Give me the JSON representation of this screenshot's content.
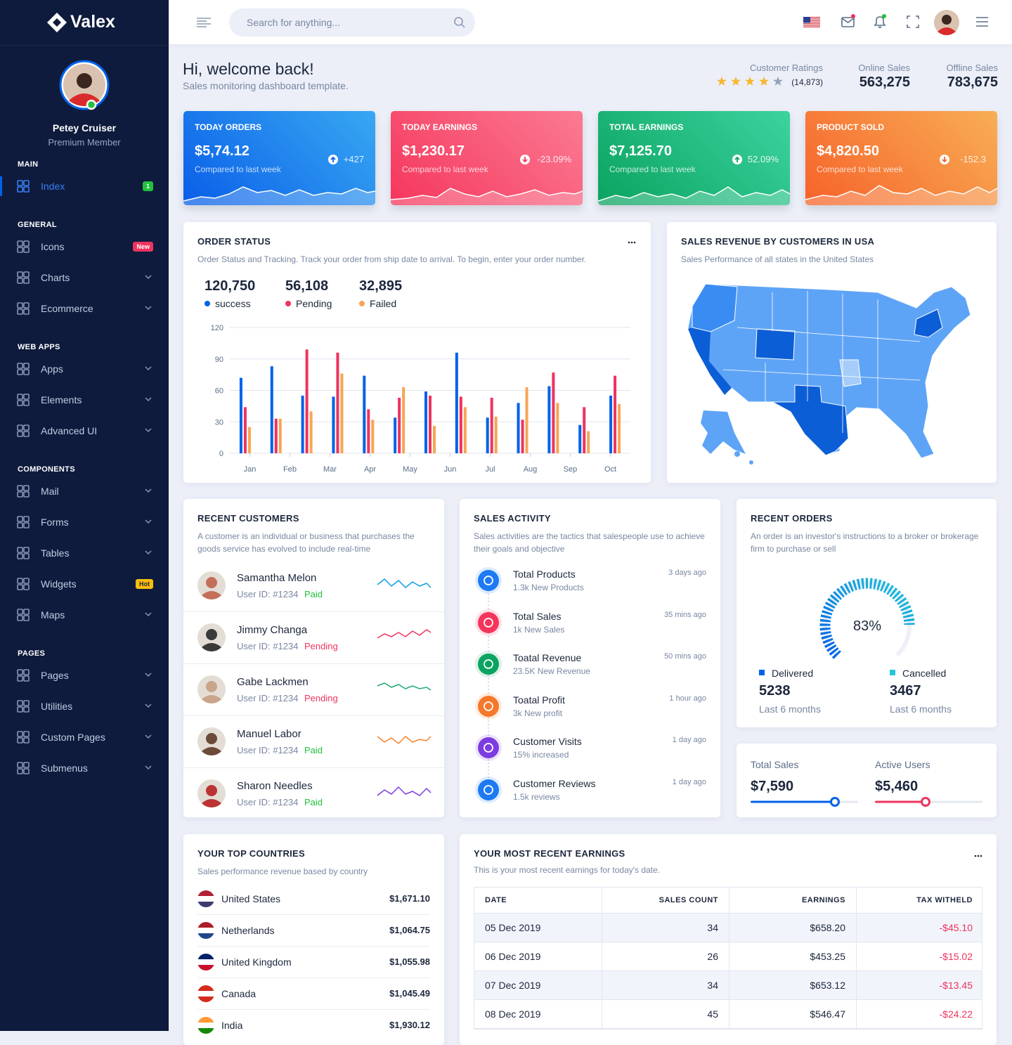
{
  "sidebar": {
    "brand": "Valex",
    "user": {
      "name": "Petey Cruiser",
      "role": "Premium Member"
    },
    "sections": [
      {
        "title": "MAIN",
        "items": [
          {
            "label": "Index",
            "badge": "1"
          }
        ]
      },
      {
        "title": "GENERAL",
        "items": [
          {
            "label": "Icons",
            "badge": "New"
          },
          {
            "label": "Charts"
          },
          {
            "label": "Ecommerce"
          }
        ]
      },
      {
        "title": "WEB APPS",
        "items": [
          {
            "label": "Apps"
          },
          {
            "label": "Elements"
          },
          {
            "label": "Advanced UI"
          }
        ]
      },
      {
        "title": "COMPONENTS",
        "items": [
          {
            "label": "Mail"
          },
          {
            "label": "Forms"
          },
          {
            "label": "Tables"
          },
          {
            "label": "Widgets",
            "badge": "Hot"
          },
          {
            "label": "Maps"
          }
        ]
      },
      {
        "title": "PAGES",
        "items": [
          {
            "label": "Pages"
          },
          {
            "label": "Utilities"
          },
          {
            "label": "Custom Pages"
          },
          {
            "label": "Submenus"
          }
        ]
      }
    ]
  },
  "header": {
    "search_placeholder": "Search for anything..."
  },
  "welcome": {
    "title": "Hi, welcome back!",
    "subtitle": "Sales monitoring dashboard template.",
    "ratings": {
      "label": "Customer Ratings",
      "stars": 4,
      "count": "(14,873)"
    },
    "online": {
      "label": "Online Sales",
      "value": "563,275"
    },
    "offline": {
      "label": "Offline Sales",
      "value": "783,675"
    }
  },
  "stat_cards": [
    {
      "title": "TODAY ORDERS",
      "value": "$5,74.12",
      "note": "Compared to last week",
      "change": "+427"
    },
    {
      "title": "TODAY EARNINGS",
      "value": "$1,230.17",
      "note": "Compared to last week",
      "change": "-23.09%"
    },
    {
      "title": "TOTAL EARNINGS",
      "value": "$7,125.70",
      "note": "Compared to last week",
      "change": "52.09%"
    },
    {
      "title": "PRODUCT SOLD",
      "value": "$4,820.50",
      "note": "Compared to last week",
      "change": "-152.3"
    }
  ],
  "order_status": {
    "title": "ORDER STATUS",
    "subtitle": "Order Status and Tracking. Track your order from ship date to arrival. To begin, enter your order number."
  },
  "chart_data": {
    "type": "bar",
    "categories": [
      null,
      null,
      null,
      null,
      null,
      null,
      null,
      null,
      null,
      null,
      null,
      null,
      null
    ],
    "x_labels": [
      "Jan",
      "Feb",
      "Mar",
      "Apr",
      "May",
      "Jun",
      "Jul",
      "Aug",
      "Sep",
      "Oct"
    ],
    "series": [
      {
        "name": "success",
        "total": "120,750",
        "color": "#0162e8",
        "values": [
          72,
          83,
          55,
          54,
          74,
          34,
          59,
          96,
          34,
          48,
          64,
          27,
          55
        ]
      },
      {
        "name": "Pending",
        "total": "56,108",
        "color": "#ee335e",
        "values": [
          44,
          33,
          99,
          96,
          42,
          53,
          55,
          54,
          53,
          32,
          77,
          44,
          74
        ]
      },
      {
        "name": "Failed",
        "total": "32,895",
        "color": "#f7a556",
        "values": [
          25,
          33,
          40,
          76,
          32,
          63,
          26,
          44,
          35,
          63,
          48,
          21,
          47
        ]
      }
    ],
    "ylim": [
      0,
      120
    ],
    "yticks": [
      0,
      30,
      60,
      90,
      120
    ],
    "grid": true
  },
  "map": {
    "title": "SALES REVENUE BY CUSTOMERS IN USA",
    "subtitle": "Sales Performance of all states in the United States"
  },
  "recent_customers": {
    "title": "RECENT CUSTOMERS",
    "subtitle": "A customer is an individual or business that purchases the goods service has evolved to include real-time",
    "rows": [
      {
        "name": "Samantha Melon",
        "user_id": "User ID: #1234",
        "status": "Paid"
      },
      {
        "name": "Jimmy Changa",
        "user_id": "User ID: #1234",
        "status": "Pending"
      },
      {
        "name": "Gabe Lackmen",
        "user_id": "User ID: #1234",
        "status": "Pending"
      },
      {
        "name": "Manuel Labor",
        "user_id": "User ID: #1234",
        "status": "Paid"
      },
      {
        "name": "Sharon Needles",
        "user_id": "User ID: #1234",
        "status": "Paid"
      }
    ]
  },
  "sales_activity": {
    "title": "SALES ACTIVITY",
    "subtitle": "Sales activities are the tactics that salespeople use to achieve their goals and objective",
    "items": [
      {
        "title": "Total Products",
        "sub": "1.3k New Products",
        "time": "3 days ago"
      },
      {
        "title": "Total Sales",
        "sub": "1k New Sales",
        "time": "35 mins ago"
      },
      {
        "title": "Toatal Revenue",
        "sub": "23.5K New Revenue",
        "time": "50 mins ago"
      },
      {
        "title": "Toatal Profit",
        "sub": "3k New profit",
        "time": "1 hour ago"
      },
      {
        "title": "Customer Visits",
        "sub": "15% increased",
        "time": "1 day ago"
      },
      {
        "title": "Customer Reviews",
        "sub": "1.5k reviews",
        "time": "1 day ago"
      }
    ]
  },
  "recent_orders": {
    "title": "RECENT ORDERS",
    "subtitle": "An order is an investor's instructions to a broker or brokerage firm to purchase or sell",
    "percent": 83,
    "percent_label": "83%",
    "legend": [
      {
        "label": "Delivered",
        "value": "5238",
        "period": "Last 6 months"
      },
      {
        "label": "Cancelled",
        "value": "3467",
        "period": "Last 6 months"
      }
    ]
  },
  "totals": [
    {
      "label": "Total Sales",
      "value": "$7,590"
    },
    {
      "label": "Active Users",
      "value": "$5,460"
    }
  ],
  "top_countries": {
    "title": "YOUR TOP COUNTRIES",
    "subtitle": "Sales performance revenue based by country",
    "rows": [
      {
        "name": "United States",
        "amount": "$1,671.10"
      },
      {
        "name": "Netherlands",
        "amount": "$1,064.75"
      },
      {
        "name": "United Kingdom",
        "amount": "$1,055.98"
      },
      {
        "name": "Canada",
        "amount": "$1,045.49"
      },
      {
        "name": "India",
        "amount": "$1,930.12"
      }
    ]
  },
  "earnings": {
    "title": "YOUR MOST RECENT EARNINGS",
    "subtitle": "This is your most recent earnings for today's date.",
    "table": {
      "headers": [
        "DATE",
        "SALES COUNT",
        "EARNINGS",
        "TAX WITHELD"
      ],
      "rows": [
        [
          "05 Dec 2019",
          "34",
          "$658.20",
          "-$45.10"
        ],
        [
          "06 Dec 2019",
          "26",
          "$453.25",
          "-$15.02"
        ],
        [
          "07 Dec 2019",
          "34",
          "$653.12",
          "-$13.45"
        ],
        [
          "08 Dec 2019",
          "45",
          "$546.47",
          "-$24.22"
        ]
      ]
    }
  }
}
